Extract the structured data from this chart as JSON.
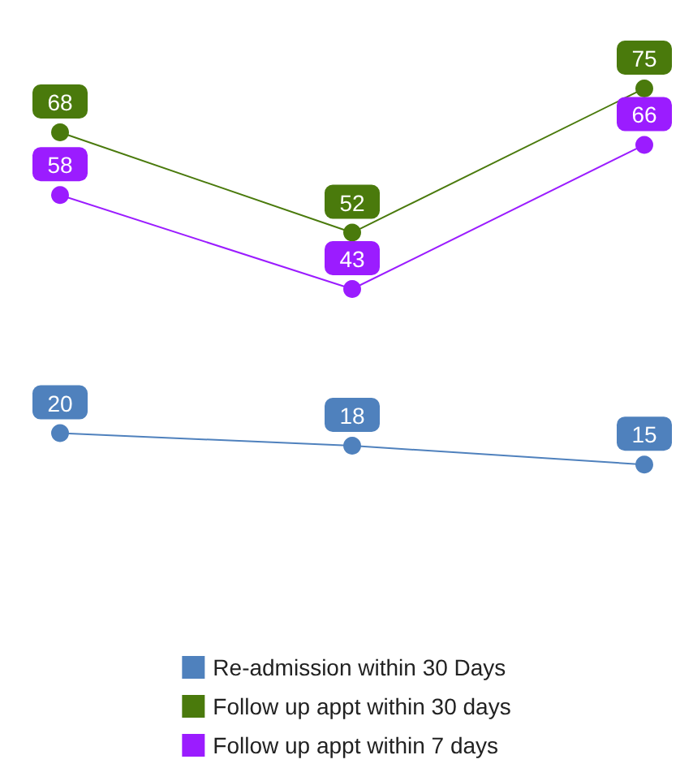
{
  "chart_data": {
    "type": "line",
    "categories": [
      null,
      null,
      null
    ],
    "series": [
      {
        "name": "Re-admission within 30 Days",
        "color": "#4f81bd",
        "values": [
          20,
          18,
          15
        ]
      },
      {
        "name": "Follow up appt within 30 days",
        "color": "#4a7a0c",
        "values": [
          68,
          52,
          75
        ]
      },
      {
        "name": "Follow up appt within 7 days",
        "color": "#9b1cff",
        "values": [
          58,
          43,
          66
        ]
      }
    ],
    "data_labels": true,
    "marker": "circle",
    "line_style": "solid",
    "grid": false,
    "legend": "bottom"
  }
}
